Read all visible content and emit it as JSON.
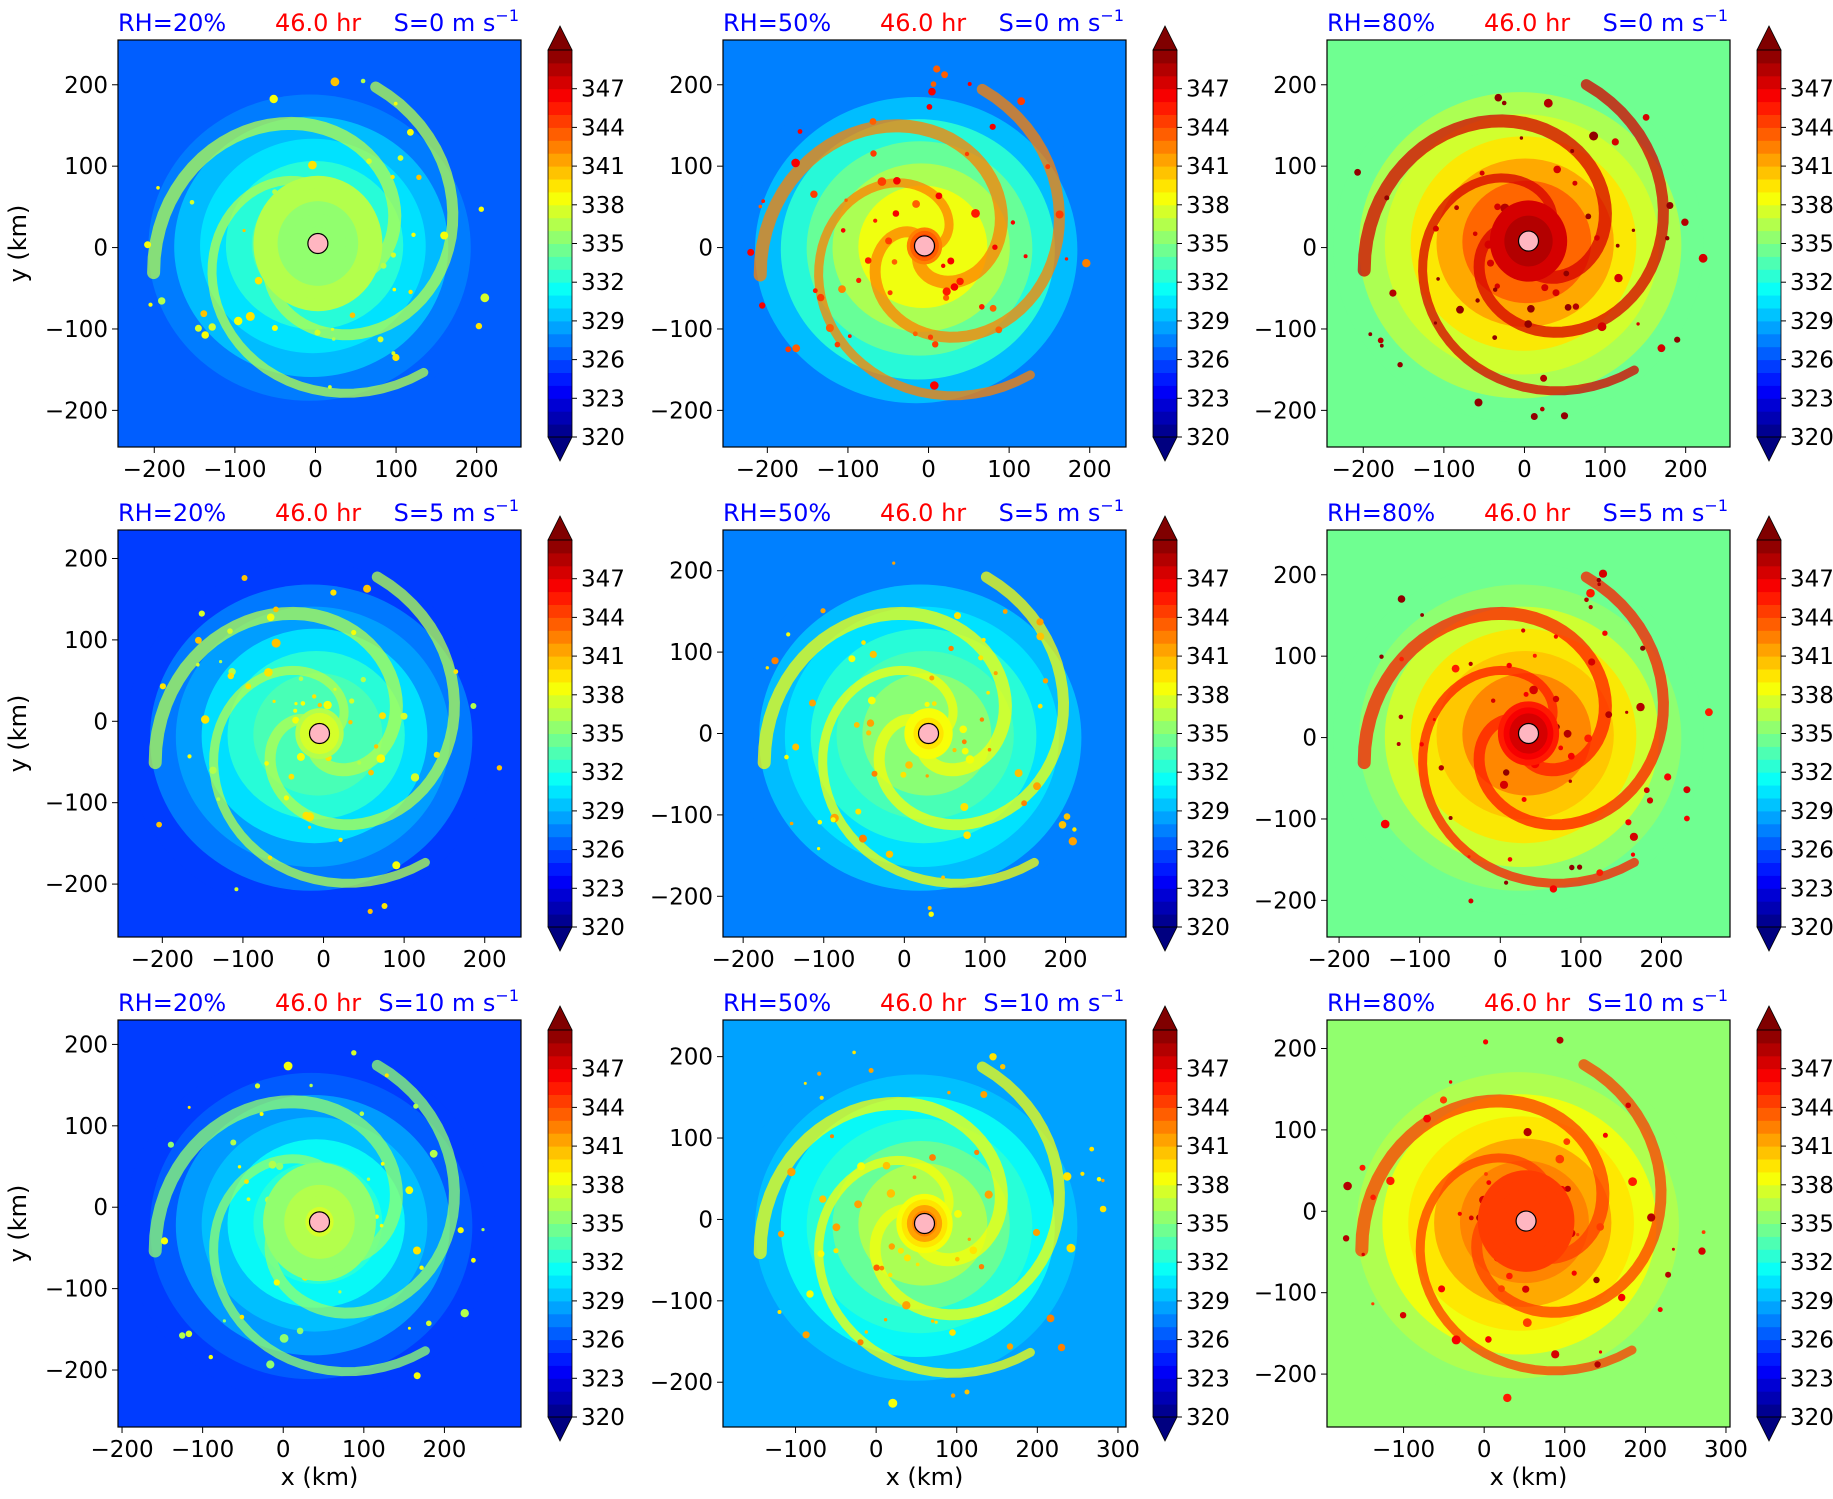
{
  "figure": {
    "time_label": "46.0 hr",
    "colors": {
      "rh_title": "#0000ff",
      "time_title": "#ff0000",
      "shear_title": "#0000ff",
      "center_marker_fill": "#ffb6c1"
    },
    "x_label": "x (km)",
    "y_label": "y (km)"
  },
  "colorbar": {
    "colormap": "jet",
    "min": 320,
    "max": 350,
    "tick_labels": [
      "320",
      "323",
      "326",
      "329",
      "332",
      "335",
      "338",
      "341",
      "344",
      "347"
    ],
    "extend": "both"
  },
  "chart_data": [
    {
      "type": "heatmap",
      "row": 0,
      "col": 0,
      "title": {
        "rh": "RH=20%",
        "time": "46.0 hr",
        "shear": "S=0 m s",
        "shear_exp": "−1"
      },
      "xlim": [
        -245,
        255
      ],
      "ylim": [
        -245,
        255
      ],
      "xticks": [
        -200,
        -100,
        0,
        100,
        200
      ],
      "yticks": [
        -200,
        -100,
        0,
        100,
        200
      ],
      "center": [
        3,
        5
      ],
      "field": {
        "env": 0.2,
        "core": 0.5,
        "core_r": 80,
        "spiral": 0.55
      }
    },
    {
      "type": "heatmap",
      "row": 0,
      "col": 1,
      "title": {
        "rh": "RH=50%",
        "time": "46.0 hr",
        "shear": "S=0 m s",
        "shear_exp": "−1"
      },
      "xlim": [
        -255,
        245
      ],
      "ylim": [
        -245,
        255
      ],
      "xticks": [
        -200,
        -100,
        0,
        100,
        200
      ],
      "yticks": [
        -200,
        -100,
        0,
        100,
        200
      ],
      "center": [
        -5,
        2
      ],
      "field": {
        "env": 0.25,
        "core": 0.85,
        "core_r": 22,
        "spiral": 0.75
      }
    },
    {
      "type": "heatmap",
      "row": 0,
      "col": 2,
      "title": {
        "rh": "RH=80%",
        "time": "46.0 hr",
        "shear": "S=0 m s",
        "shear_exp": "−1"
      },
      "xlim": [
        -245,
        255
      ],
      "ylim": [
        -245,
        255
      ],
      "xticks": [
        -200,
        -100,
        0,
        100,
        200
      ],
      "yticks": [
        -200,
        -100,
        0,
        100,
        200
      ],
      "center": [
        5,
        8
      ],
      "field": {
        "env": 0.47,
        "core": 0.98,
        "core_r": 48,
        "spiral": 0.9
      }
    },
    {
      "type": "heatmap",
      "row": 1,
      "col": 0,
      "title": {
        "rh": "RH=20%",
        "time": "46.0 hr",
        "shear": "S=5 m s",
        "shear_exp": "−1"
      },
      "xlim": [
        -255,
        245
      ],
      "ylim": [
        -265,
        235
      ],
      "xticks": [
        -200,
        -100,
        0,
        100,
        200
      ],
      "yticks": [
        -200,
        -100,
        0,
        100,
        200
      ],
      "center": [
        -5,
        -15
      ],
      "field": {
        "env": 0.18,
        "core": 0.62,
        "core_r": 30,
        "spiral": 0.55
      }
    },
    {
      "type": "heatmap",
      "row": 1,
      "col": 1,
      "title": {
        "rh": "RH=50%",
        "time": "46.0 hr",
        "shear": "S=5 m s",
        "shear_exp": "−1"
      },
      "xlim": [
        -225,
        275
      ],
      "ylim": [
        -250,
        250
      ],
      "xticks": [
        -200,
        -100,
        0,
        100,
        200
      ],
      "yticks": [
        -200,
        -100,
        0,
        100,
        200
      ],
      "center": [
        30,
        0
      ],
      "field": {
        "env": 0.25,
        "core": 0.72,
        "core_r": 30,
        "spiral": 0.6
      }
    },
    {
      "type": "heatmap",
      "row": 1,
      "col": 2,
      "title": {
        "rh": "RH=80%",
        "time": "46.0 hr",
        "shear": "S=5 m s",
        "shear_exp": "−1"
      },
      "xlim": [
        -215,
        285
      ],
      "ylim": [
        -245,
        255
      ],
      "xticks": [
        -200,
        -100,
        0,
        100,
        200
      ],
      "yticks": [
        -200,
        -100,
        0,
        100,
        200
      ],
      "center": [
        35,
        5
      ],
      "field": {
        "env": 0.47,
        "core": 0.95,
        "core_r": 38,
        "spiral": 0.85
      }
    },
    {
      "type": "heatmap",
      "row": 2,
      "col": 0,
      "title": {
        "rh": "RH=20%",
        "time": "46.0 hr",
        "shear": "S=10 m s",
        "shear_exp": "−1"
      },
      "xlim": [
        -205,
        295
      ],
      "ylim": [
        -270,
        230
      ],
      "xticks": [
        -200,
        -100,
        0,
        100,
        200
      ],
      "yticks": [
        -200,
        -100,
        0,
        100,
        200
      ],
      "center": [
        45,
        -18
      ],
      "field": {
        "env": 0.18,
        "core": 0.58,
        "core_r": 70,
        "spiral": 0.5
      }
    },
    {
      "type": "heatmap",
      "row": 2,
      "col": 1,
      "title": {
        "rh": "RH=50%",
        "time": "46.0 hr",
        "shear": "S=10 m s",
        "shear_exp": "−1"
      },
      "xlim": [
        -190,
        310
      ],
      "ylim": [
        -255,
        245
      ],
      "xticks": [
        -100,
        0,
        100,
        200,
        300
      ],
      "yticks": [
        -200,
        -100,
        0,
        100,
        200
      ],
      "center": [
        60,
        -5
      ],
      "field": {
        "env": 0.28,
        "core": 0.78,
        "core_r": 35,
        "spiral": 0.62
      }
    },
    {
      "type": "heatmap",
      "row": 2,
      "col": 2,
      "title": {
        "rh": "RH=80%",
        "time": "46.0 hr",
        "shear": "S=10 m s",
        "shear_exp": "−1"
      },
      "xlim": [
        -195,
        305
      ],
      "ylim": [
        -265,
        235
      ],
      "xticks": [
        -100,
        0,
        100,
        200,
        300
      ],
      "yticks": [
        -200,
        -100,
        0,
        100,
        200
      ],
      "center": [
        52,
        -12
      ],
      "field": {
        "env": 0.52,
        "core": 0.8,
        "core_r": 60,
        "spiral": 0.82
      }
    }
  ]
}
